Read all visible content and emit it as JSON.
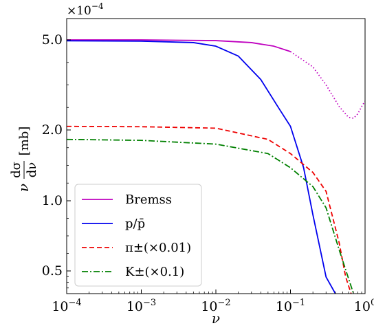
{
  "chart_data": {
    "type": "line",
    "title": "",
    "xlabel": "ν",
    "ylabel_left": "ν",
    "ylabel_num": "dσ",
    "ylabel_den": "dν",
    "ylabel_unit": "[mb]",
    "x_scale": "log",
    "y_scale": "log",
    "xlim": [
      0.0001,
      1
    ],
    "ylim": [
      0.00041,
      0.00064
    ],
    "y_multiplier": "×10",
    "y_multiplier_exp": "−4",
    "x_ticks": [
      {
        "value": 0.0001,
        "base": "10",
        "exp": "−4"
      },
      {
        "value": 0.001,
        "base": "10",
        "exp": "−3"
      },
      {
        "value": 0.01,
        "base": "10",
        "exp": "−2"
      },
      {
        "value": 0.1,
        "base": "10",
        "exp": "−1"
      },
      {
        "value": 1,
        "base": "10",
        "exp": "0"
      }
    ],
    "y_ticks": [
      {
        "value": 0.0005,
        "label": "5.0"
      },
      {
        "value": 0.00045,
        "label": "2.0"
      },
      {
        "value": 0.000435,
        "label": "1.0"
      },
      {
        "value": 0.000425,
        "label": "0.5"
      }
    ],
    "legend_position": "bottom-left",
    "series": [
      {
        "name": "Bremss",
        "color": "#bf00bf",
        "dash": "solid",
        "points": [
          [
            0.0001,
            0.0005
          ],
          [
            0.001,
            0.0005
          ],
          [
            0.01,
            0.0004996
          ],
          [
            0.03,
            0.0004985
          ],
          [
            0.06,
            0.0004965
          ],
          [
            0.1,
            0.0004935
          ]
        ]
      },
      {
        "name": "Bremss (dotted extension)",
        "color": "#bf00bf",
        "dash": "dotted",
        "points": [
          [
            0.1,
            0.0004935
          ],
          [
            0.2,
            0.000485
          ],
          [
            0.3,
            0.000475
          ],
          [
            0.45,
            0.000463
          ],
          [
            0.6,
            0.000457
          ],
          [
            0.7,
            0.0004565
          ],
          [
            0.8,
            0.000459
          ],
          [
            0.9,
            0.000463
          ],
          [
            1.0,
            0.000466
          ]
        ]
      },
      {
        "name": "p/p̄",
        "color": "#0000ee",
        "dash": "solid",
        "points": [
          [
            0.0001,
            0.0004995
          ],
          [
            0.001,
            0.0004993
          ],
          [
            0.005,
            0.0004985
          ],
          [
            0.01,
            0.0004965
          ],
          [
            0.02,
            0.000491
          ],
          [
            0.04,
            0.000478
          ],
          [
            0.07,
            0.000462
          ],
          [
            0.1,
            0.000452
          ],
          [
            0.15,
            0.000442
          ],
          [
            0.2,
            0.000433
          ],
          [
            0.3,
            0.000421
          ],
          [
            0.4,
            0.00041
          ]
        ]
      },
      {
        "name": "π±(×0.01)",
        "color": "#ee0000",
        "dash": "dashed",
        "points": [
          [
            0.0001,
            0.000452
          ],
          [
            0.001,
            0.0004518
          ],
          [
            0.01,
            0.000451
          ],
          [
            0.05,
            0.000448
          ],
          [
            0.1,
            0.000445
          ],
          [
            0.2,
            0.000441
          ],
          [
            0.3,
            0.000437
          ],
          [
            0.45,
            0.000429
          ],
          [
            0.55,
            0.000421
          ],
          [
            0.65,
            0.00041
          ]
        ]
      },
      {
        "name": "K±(×0.1)",
        "color": "#008000",
        "dash": "dashdot",
        "points": [
          [
            0.0001,
            0.000448
          ],
          [
            0.001,
            0.0004478
          ],
          [
            0.01,
            0.000447
          ],
          [
            0.05,
            0.000445
          ],
          [
            0.1,
            0.000442
          ],
          [
            0.2,
            0.000438
          ],
          [
            0.3,
            0.000434
          ],
          [
            0.45,
            0.000428
          ],
          [
            0.6,
            0.00042
          ],
          [
            0.7,
            0.00041
          ]
        ]
      }
    ],
    "legend": [
      {
        "label": "Bremss",
        "color": "#bf00bf",
        "dash": "solid"
      },
      {
        "label": "p/p̄",
        "color": "#0000ee",
        "dash": "solid"
      },
      {
        "label": "π±(×0.01)",
        "color": "#ee0000",
        "dash": "dashed"
      },
      {
        "label": "K±(×0.1)",
        "color": "#008000",
        "dash": "dashdot"
      }
    ]
  }
}
